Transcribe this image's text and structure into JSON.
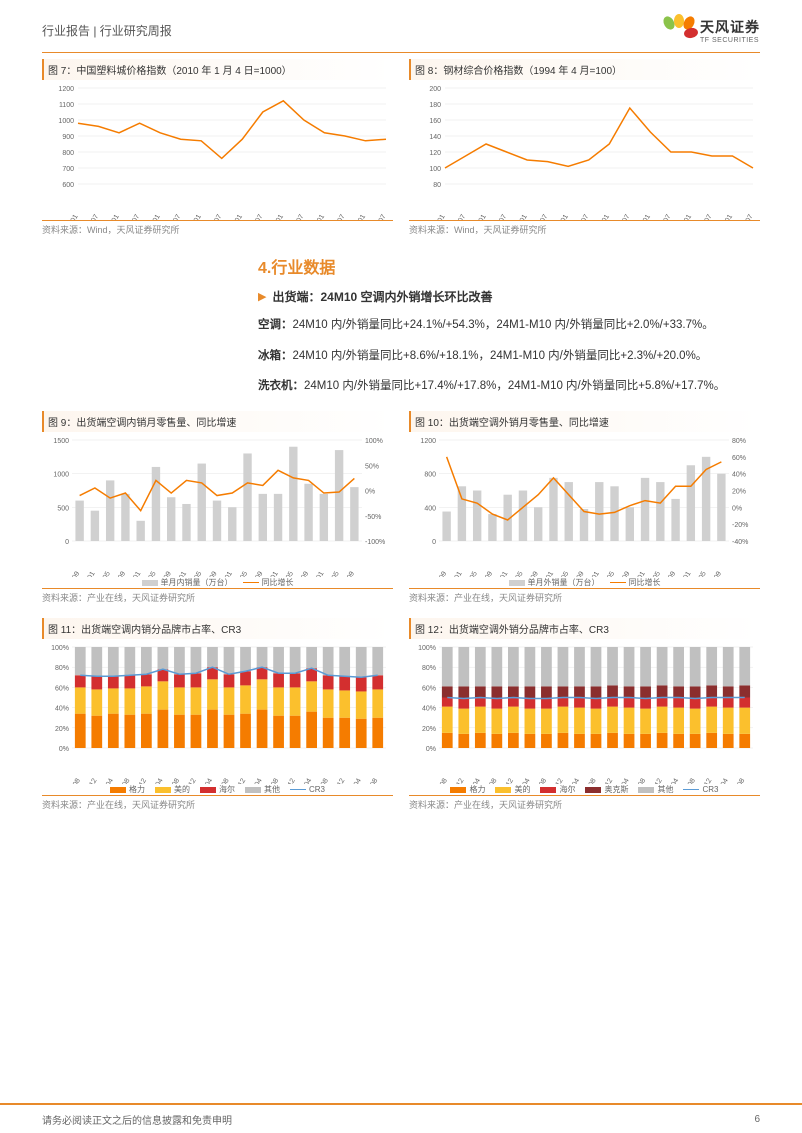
{
  "header": {
    "breadcrumb": "行业报告 | 行业研究周报"
  },
  "logo": {
    "cn": "天风证券",
    "en": "TF SECURITIES"
  },
  "chart7": {
    "title": "图 7：中国塑料城价格指数（2010 年 1 月 4 日=1000）",
    "source": "资料来源：Wind，天风证券研究所",
    "type": "line",
    "line_color": "#f57c00",
    "grid_color": "#e5e5e5",
    "ylim": [
      600,
      1200
    ],
    "ytick_step": 100,
    "xlabels": [
      "2017/01",
      "2017/07",
      "2018/01",
      "2018/07",
      "2019/01",
      "2019/07",
      "2020/01",
      "2020/07",
      "2021/01",
      "2021/07",
      "2022/01",
      "2022/07",
      "2023/01",
      "2023/07",
      "2024/01",
      "2024/07"
    ],
    "values": [
      980,
      960,
      920,
      980,
      920,
      880,
      870,
      760,
      880,
      1050,
      1120,
      1000,
      920,
      900,
      870,
      880
    ]
  },
  "chart8": {
    "title": "图 8：钢材综合价格指数（1994 年 4 月=100）",
    "source": "资料来源：Wind，天风证券研究所",
    "type": "line",
    "line_color": "#f57c00",
    "grid_color": "#e5e5e5",
    "ylim": [
      80,
      200
    ],
    "ytick_step": 20,
    "xlabels": [
      "2017/01",
      "2017/07",
      "2018/01",
      "2018/07",
      "2019/01",
      "2019/07",
      "2020/01",
      "2020/07",
      "2021/01",
      "2021/07",
      "2022/01",
      "2022/07",
      "2023/01",
      "2023/07",
      "2024/01",
      "2024/07"
    ],
    "values": [
      100,
      115,
      130,
      120,
      110,
      108,
      102,
      110,
      130,
      175,
      145,
      120,
      120,
      115,
      115,
      100
    ]
  },
  "section4": {
    "heading": "4.行业数据",
    "bullet": "出货端：24M10 空调内外销增长环比改善",
    "p1_label": "空调：",
    "p1": "24M10 内/外销量同比+24.1%/+54.3%，24M1-M10 内/外销量同比+2.0%/+33.7%。",
    "p2_label": "冰箱：",
    "p2": "24M10 内/外销量同比+8.6%/+18.1%，24M1-M10 内/外销量同比+2.3%/+20.0%。",
    "p3_label": "洗衣机：",
    "p3": "24M10 内/外销量同比+17.4%/+17.8%，24M1-M10 内/外销量同比+5.8%/+17.7%。"
  },
  "chart9": {
    "title": "图 9：出货端空调内销月零售量、同比增速",
    "source": "资料来源：产业在线，天风证券研究所",
    "type": "bar_line",
    "bar_color": "#d0d0d0",
    "line_color": "#f57c00",
    "yleft": [
      0,
      1500
    ],
    "yleft_step": 500,
    "yright": [
      -100,
      100
    ],
    "yright_step": 50,
    "xlabels": [
      "18/09",
      "19/01",
      "19/05",
      "19/09",
      "20/01",
      "20/05",
      "20/09",
      "21/01",
      "21/05",
      "21/09",
      "22/01",
      "22/05",
      "22/09",
      "23/01",
      "23/05",
      "23/09",
      "24/01",
      "24/05",
      "24/09"
    ],
    "bars": [
      600,
      450,
      900,
      700,
      300,
      1100,
      650,
      550,
      1150,
      600,
      500,
      1300,
      700,
      700,
      1400,
      850,
      700,
      1350,
      800
    ],
    "line": [
      -10,
      5,
      -15,
      -5,
      -40,
      20,
      -5,
      20,
      15,
      -10,
      -5,
      15,
      10,
      40,
      25,
      20,
      -5,
      -3,
      24
    ],
    "legend_bar": "单月内销量（万台）",
    "legend_line": "同比增长"
  },
  "chart10": {
    "title": "图 10：出货端空调外销月零售量、同比增速",
    "source": "资料来源：产业在线，天风证券研究所",
    "type": "bar_line",
    "bar_color": "#d0d0d0",
    "line_color": "#f57c00",
    "yleft": [
      0,
      1200
    ],
    "yleft_step": 400,
    "yright": [
      -40,
      80
    ],
    "yright_step": 20,
    "xlabels": [
      "18/09",
      "19/01",
      "19/05",
      "19/09",
      "20/01",
      "20/05",
      "20/09",
      "21/01",
      "21/05",
      "21/09",
      "22/01",
      "22/05",
      "22/09",
      "23/01",
      "23/05",
      "23/09",
      "24/01",
      "24/05",
      "24/09"
    ],
    "bars": [
      350,
      650,
      600,
      320,
      550,
      600,
      400,
      750,
      700,
      380,
      700,
      650,
      400,
      750,
      700,
      500,
      900,
      1000,
      800
    ],
    "line": [
      60,
      10,
      5,
      -8,
      -15,
      0,
      15,
      35,
      15,
      -5,
      -8,
      -6,
      2,
      8,
      5,
      25,
      25,
      45,
      54
    ],
    "legend_bar": "单月外销量（万台）",
    "legend_line": "同比增长"
  },
  "chart11": {
    "title": "图 11：出货端空调内销分品牌市占率、CR3",
    "source": "资料来源：产业在线，天风证券研究所",
    "type": "stacked_bar_line",
    "ylim": [
      0,
      100
    ],
    "ytick_step": 20,
    "xlabels": [
      "18/08",
      "18/12",
      "19/04",
      "19/08",
      "19/12",
      "20/04",
      "20/08",
      "20/12",
      "21/04",
      "21/08",
      "21/12",
      "22/04",
      "22/08",
      "22/12",
      "23/04",
      "23/08",
      "23/12",
      "24/04",
      "24/08"
    ],
    "series": {
      "geli": {
        "label": "格力",
        "color": "#f57c00",
        "values": [
          34,
          32,
          34,
          33,
          34,
          38,
          33,
          33,
          38,
          33,
          34,
          38,
          32,
          32,
          36,
          30,
          30,
          29,
          30
        ]
      },
      "meidi": {
        "label": "美的",
        "color": "#fbc02d",
        "values": [
          26,
          26,
          25,
          26,
          27,
          28,
          27,
          27,
          30,
          27,
          28,
          30,
          28,
          28,
          30,
          28,
          27,
          27,
          28
        ]
      },
      "haier": {
        "label": "海尔",
        "color": "#d32f2f",
        "values": [
          12,
          13,
          12,
          13,
          12,
          12,
          13,
          14,
          12,
          13,
          14,
          12,
          14,
          14,
          13,
          14,
          14,
          14,
          14
        ]
      },
      "other": {
        "label": "其他",
        "color": "#c0c0c0",
        "values": [
          28,
          29,
          29,
          28,
          27,
          22,
          27,
          26,
          20,
          27,
          24,
          20,
          26,
          26,
          21,
          28,
          29,
          30,
          28
        ]
      }
    },
    "cr3": {
      "label": "CR3",
      "color": "#5b9bd5",
      "values": [
        72,
        71,
        71,
        72,
        73,
        78,
        73,
        74,
        80,
        73,
        76,
        80,
        74,
        74,
        79,
        72,
        71,
        70,
        72
      ]
    }
  },
  "chart12": {
    "title": "图 12：出货端空调外销分品牌市占率、CR3",
    "source": "资料来源：产业在线，天风证券研究所",
    "type": "stacked_bar_line",
    "ylim": [
      0,
      100
    ],
    "ytick_step": 20,
    "xlabels": [
      "18/08",
      "18/12",
      "19/04",
      "19/08",
      "19/12",
      "20/04",
      "20/08",
      "20/12",
      "21/04",
      "21/08",
      "21/12",
      "22/04",
      "22/08",
      "22/12",
      "23/04",
      "23/08",
      "23/12",
      "24/04",
      "24/08"
    ],
    "series": {
      "geli": {
        "label": "格力",
        "color": "#f57c00",
        "values": [
          15,
          14,
          15,
          14,
          15,
          14,
          14,
          15,
          14,
          14,
          15,
          14,
          14,
          15,
          14,
          14,
          15,
          14,
          14
        ]
      },
      "meidi": {
        "label": "美的",
        "color": "#fbc02d",
        "values": [
          26,
          25,
          26,
          25,
          26,
          25,
          25,
          26,
          26,
          25,
          26,
          26,
          25,
          26,
          26,
          25,
          26,
          26,
          26
        ]
      },
      "haier": {
        "label": "海尔",
        "color": "#d32f2f",
        "values": [
          9,
          10,
          9,
          10,
          9,
          10,
          10,
          9,
          10,
          10,
          9,
          10,
          10,
          9,
          10,
          10,
          9,
          10,
          10
        ]
      },
      "aokesi": {
        "label": "奥克斯",
        "color": "#8b2e2e",
        "values": [
          11,
          12,
          11,
          12,
          11,
          12,
          12,
          11,
          11,
          12,
          12,
          11,
          12,
          12,
          11,
          12,
          12,
          11,
          12
        ]
      },
      "other": {
        "label": "其他",
        "color": "#c0c0c0",
        "values": [
          39,
          39,
          39,
          39,
          39,
          39,
          39,
          39,
          39,
          39,
          38,
          39,
          39,
          38,
          39,
          39,
          38,
          39,
          38
        ]
      }
    },
    "cr3": {
      "label": "CR3",
      "color": "#5b9bd5",
      "values": [
        50,
        49,
        50,
        49,
        50,
        49,
        49,
        50,
        50,
        49,
        50,
        50,
        49,
        50,
        50,
        49,
        50,
        50,
        50
      ]
    }
  },
  "footer": {
    "disclaimer": "请务必阅读正文之后的信息披露和免责申明",
    "page": "6"
  }
}
